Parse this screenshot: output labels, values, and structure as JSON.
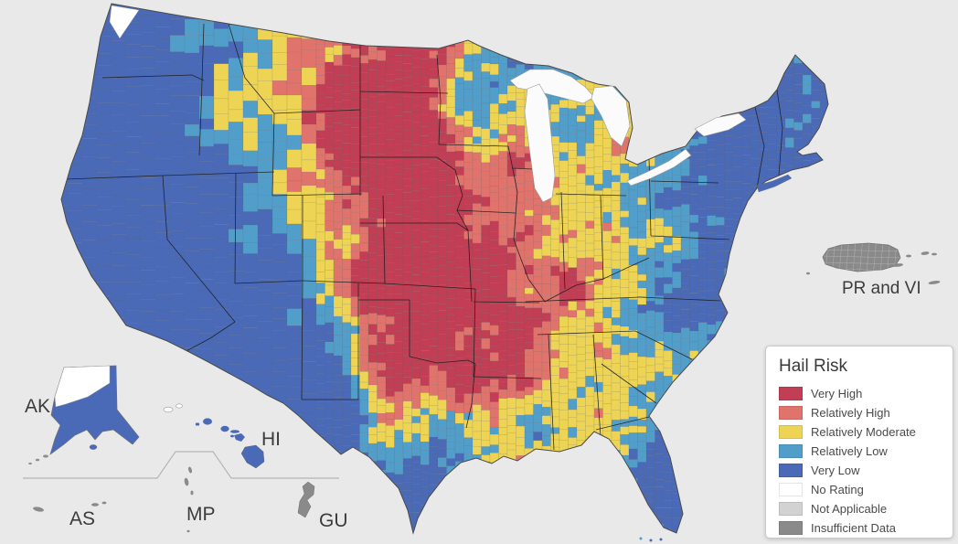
{
  "legend": {
    "title": "Hail Risk",
    "items": [
      {
        "label": "Very High",
        "color": "#c13e55"
      },
      {
        "label": "Relatively High",
        "color": "#e0736b"
      },
      {
        "label": "Relatively Moderate",
        "color": "#edd455"
      },
      {
        "label": "Relatively Low",
        "color": "#529eca"
      },
      {
        "label": "Very Low",
        "color": "#4a6ab8"
      },
      {
        "label": "No Rating",
        "color": "#ffffff"
      },
      {
        "label": "Not Applicable",
        "color": "#d2d2d2"
      },
      {
        "label": "Insufficient Data",
        "color": "#8a8a8a"
      }
    ]
  },
  "insets": {
    "ak": "AK",
    "hi": "HI",
    "as": "AS",
    "mp": "MP",
    "gu": "GU",
    "prvi": "PR and VI"
  },
  "map": {
    "background": "#e9e9e9",
    "water": "#fbfbfb",
    "state_border": "#1c1c1c",
    "nation_border": "#4a4a4a",
    "county_border": "rgba(100,100,100,0.35)"
  }
}
